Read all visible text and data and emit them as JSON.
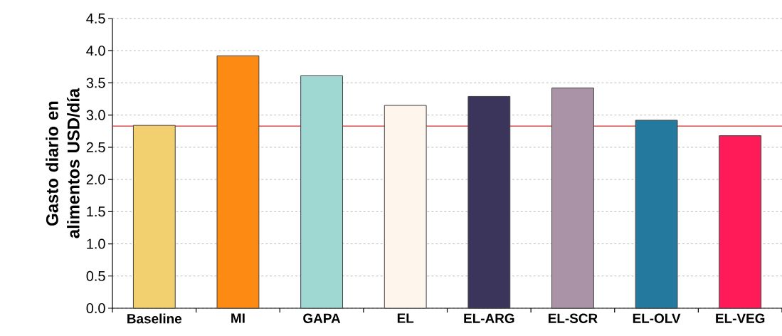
{
  "chart_data": {
    "type": "bar",
    "ylabel": "Gasto diario en alimentos USD/día",
    "categories": [
      "Baseline",
      "MI",
      "GAPA",
      "EL",
      "EL-ARG",
      "EL-SCR",
      "EL-OLV",
      "EL-VEG"
    ],
    "values": [
      2.84,
      3.92,
      3.61,
      3.15,
      3.29,
      3.42,
      2.92,
      2.68
    ],
    "colors": [
      "#f2d06f",
      "#fd8a12",
      "#9fd8d2",
      "#fef5ed",
      "#3c355b",
      "#ab93a7",
      "#24799e",
      "#ff1b57"
    ],
    "ylim": [
      0,
      4.5
    ],
    "yticks": [
      {
        "value": 0,
        "label": "0.0"
      },
      {
        "value": 0.5,
        "label": "0.5"
      },
      {
        "value": 1,
        "label": "1.0"
      },
      {
        "value": 1.5,
        "label": "1.5"
      },
      {
        "value": 2,
        "label": "2.0"
      },
      {
        "value": 2.5,
        "label": "2.5"
      },
      {
        "value": 3,
        "label": "3.0"
      },
      {
        "value": 3.5,
        "label": "3.5"
      },
      {
        "value": 4,
        "label": "4.0"
      },
      {
        "value": 4.5,
        "label": "4.5"
      }
    ],
    "grid": "y",
    "ref_lines": [
      {
        "axis": "y",
        "value": 2.83,
        "color": "#d32f2f"
      }
    ]
  }
}
